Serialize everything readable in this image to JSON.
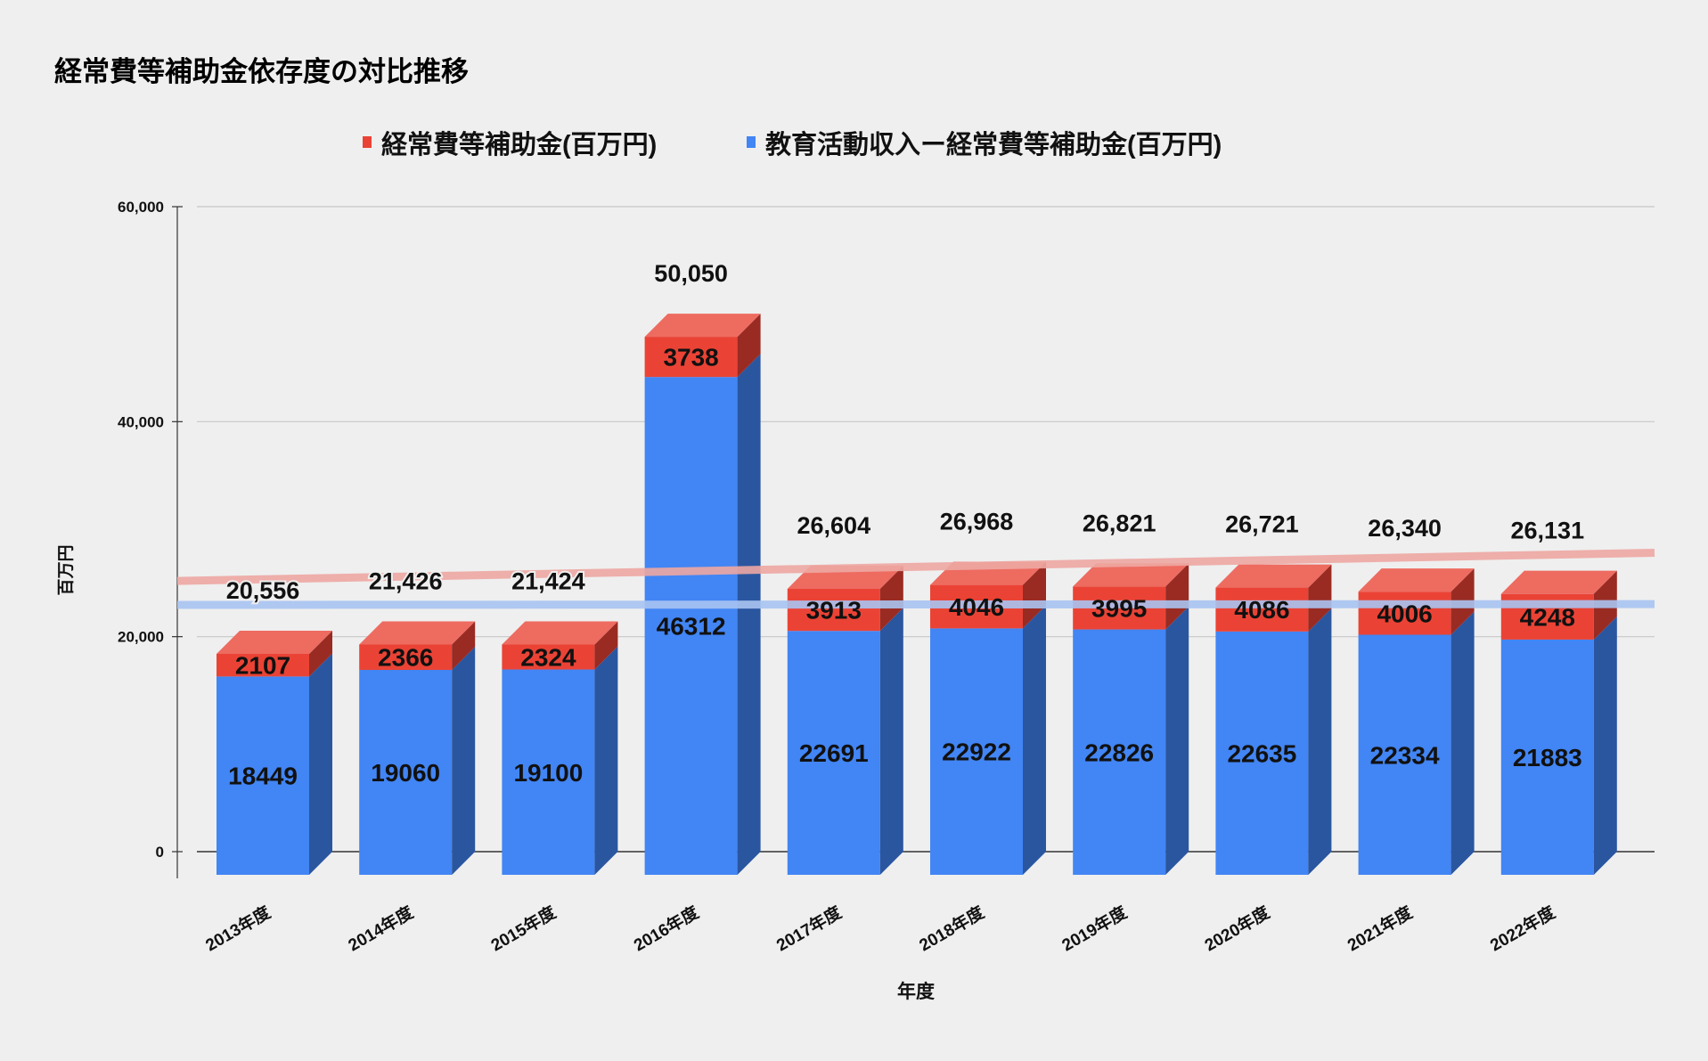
{
  "chart_data": {
    "type": "bar",
    "stacked": true,
    "three_d": true,
    "title": "経常費等補助金依存度の対比推移",
    "xlabel": "年度",
    "ylabel": "百万円",
    "ylim": [
      0,
      60000
    ],
    "yticks": [
      "0",
      "20,000",
      "40,000",
      "60,000"
    ],
    "ytick_values": [
      0,
      20000,
      40000,
      60000
    ],
    "grid": true,
    "legend_position": "top-center",
    "categories": [
      "2013年度",
      "2014年度",
      "2015年度",
      "2016年度",
      "2017年度",
      "2018年度",
      "2019年度",
      "2020年度",
      "2021年度",
      "2022年度"
    ],
    "series": [
      {
        "name": "教育活動収入ー経常費等補助金(百万円)",
        "color": "#4285F4",
        "values": [
          18449,
          19060,
          19100,
          46312,
          22691,
          22922,
          22826,
          22635,
          22334,
          21883
        ]
      },
      {
        "name": "経常費等補助金(百万円)",
        "color": "#EA4335",
        "values": [
          2107,
          2366,
          2324,
          3738,
          3913,
          4046,
          3995,
          4086,
          4006,
          4248
        ]
      }
    ],
    "totals": [
      "20,556",
      "21,426",
      "21,424",
      "50,050",
      "26,604",
      "26,968",
      "26,821",
      "26,721",
      "26,340",
      "26,131"
    ],
    "trendlines": [
      {
        "series": "経常費等補助金(百万円)",
        "color": "#EEA8A3"
      },
      {
        "series": "教育活動収入ー経常費等補助金(百万円)",
        "color": "#A9C4F2"
      }
    ],
    "legend": [
      "経常費等補助金(百万円)",
      "教育活動収入ー経常費等補助金(百万円)"
    ]
  }
}
